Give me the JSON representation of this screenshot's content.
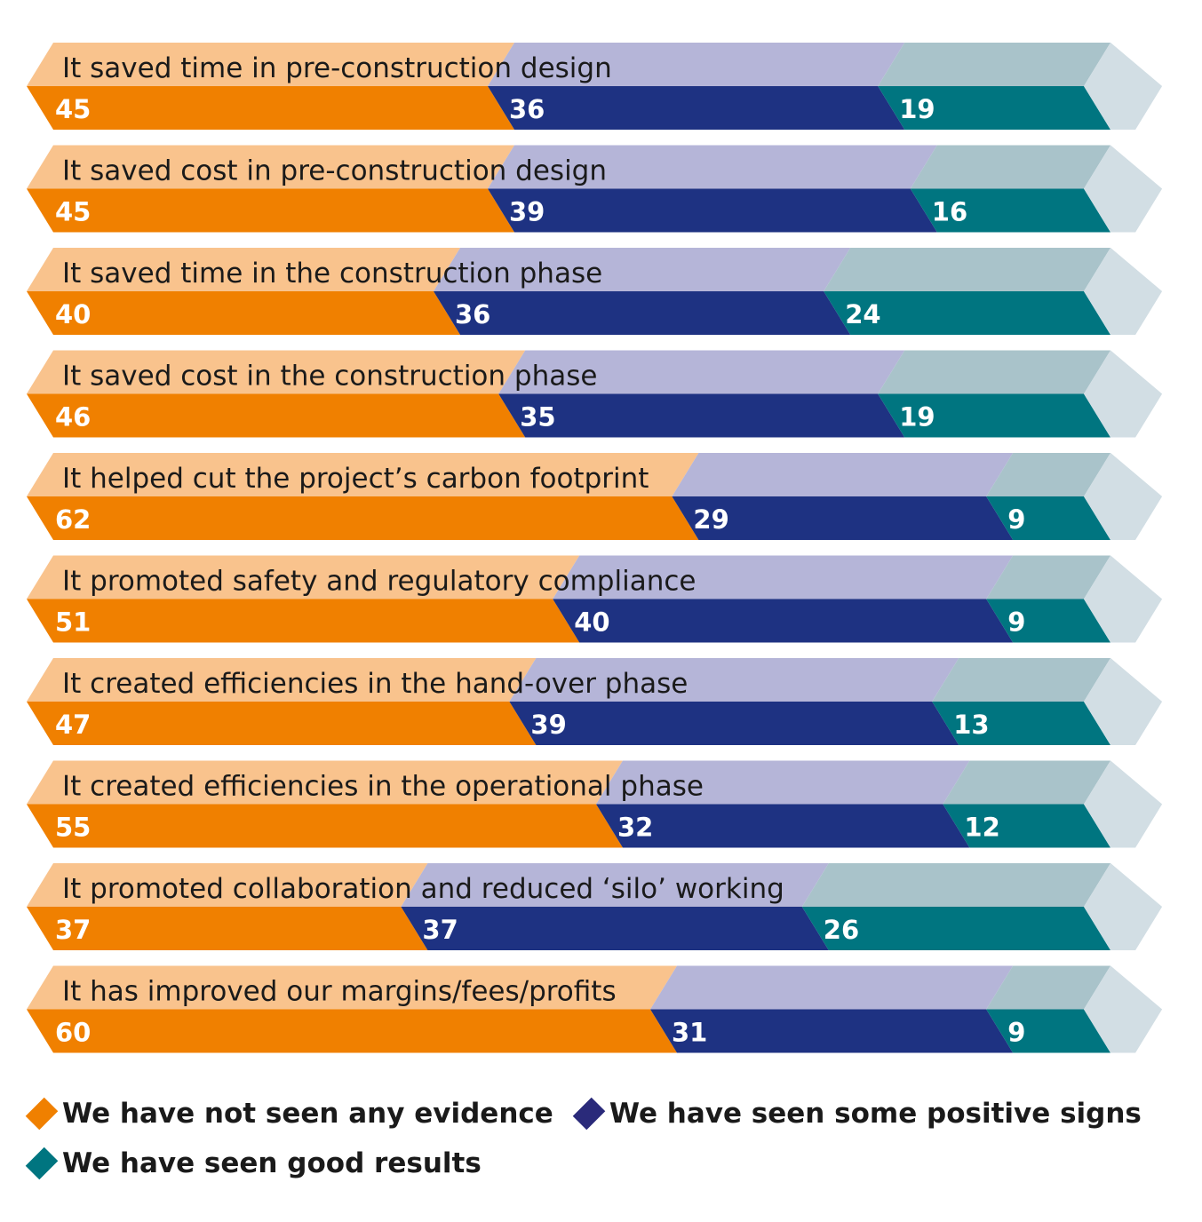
{
  "chart_data": {
    "type": "bar",
    "orientation": "horizontal",
    "stacked": true,
    "percent_stacked": true,
    "title": "",
    "xlabel": "",
    "ylabel": "",
    "xlim": [
      0,
      100
    ],
    "grid": false,
    "legend_position": "bottom",
    "categories": [
      "It saved time in pre-construction design",
      "It saved cost in pre-construction design",
      "It saved time in the construction phase",
      "It saved cost in the construction phase",
      "It helped cut the project’s carbon footprint",
      "It promoted safety and regulatory compliance",
      "It created efficiencies in the hand-over phase",
      "It created efficiencies in the operational phase",
      "It promoted collaboration and reduced ‘silo’ working",
      "It has improved our margins/fees/profits"
    ],
    "series": [
      {
        "name": "We have not seen any evidence",
        "color": "#f08000",
        "light_color": "#f9c38d",
        "values": [
          45,
          45,
          40,
          46,
          62,
          51,
          47,
          55,
          37,
          60
        ]
      },
      {
        "name": "We have seen some positive signs",
        "color": "#1e3282",
        "light_color": "#b5b5d8",
        "values": [
          36,
          39,
          36,
          35,
          29,
          40,
          39,
          32,
          37,
          31
        ]
      },
      {
        "name": "We have seen good results",
        "color": "#007580",
        "light_color": "#a9c3ca",
        "values": [
          19,
          16,
          24,
          19,
          9,
          9,
          13,
          12,
          26,
          9
        ]
      }
    ],
    "cap_color": "#d2dee4"
  }
}
